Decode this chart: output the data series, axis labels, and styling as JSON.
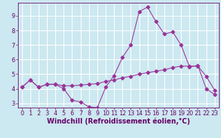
{
  "xlabel": "Windchill (Refroidissement éolien,°C)",
  "background_color": "#cce8f0",
  "grid_color": "#ffffff",
  "line_color": "#993399",
  "xlim": [
    -0.5,
    23.5
  ],
  "ylim": [
    2.7,
    9.9
  ],
  "yticks": [
    3,
    4,
    5,
    6,
    7,
    8,
    9
  ],
  "xticks": [
    0,
    1,
    2,
    3,
    4,
    5,
    6,
    7,
    8,
    9,
    10,
    11,
    12,
    13,
    14,
    15,
    16,
    17,
    18,
    19,
    20,
    21,
    22,
    23
  ],
  "curve1_x": [
    0,
    1,
    2,
    3,
    4,
    5,
    6,
    7,
    8,
    9,
    10,
    11,
    12,
    13,
    14,
    15,
    16,
    17,
    18,
    19,
    20,
    21,
    22,
    23
  ],
  "curve1_y": [
    4.1,
    4.6,
    4.1,
    4.3,
    4.3,
    4.0,
    3.2,
    3.1,
    2.75,
    2.7,
    4.1,
    4.9,
    6.15,
    7.0,
    9.3,
    9.6,
    8.6,
    7.75,
    7.9,
    7.0,
    5.5,
    5.6,
    4.0,
    3.6
  ],
  "curve2_x": [
    0,
    1,
    2,
    3,
    4,
    5,
    6,
    7,
    8,
    9,
    10,
    11,
    12,
    13,
    14,
    15,
    16,
    17,
    18,
    19,
    20,
    21,
    22,
    23
  ],
  "curve2_y": [
    4.1,
    4.6,
    4.1,
    4.3,
    4.3,
    4.2,
    4.2,
    4.25,
    4.3,
    4.35,
    4.5,
    4.6,
    4.75,
    4.85,
    5.0,
    5.1,
    5.2,
    5.3,
    5.45,
    5.55,
    5.55,
    5.55,
    4.85,
    3.9
  ],
  "marker": "D",
  "marker_size": 2.5,
  "linewidth": 0.8,
  "xlabel_fontsize": 7,
  "tick_fontsize": 6,
  "tick_color": "#660066",
  "spine_color": "#660066"
}
